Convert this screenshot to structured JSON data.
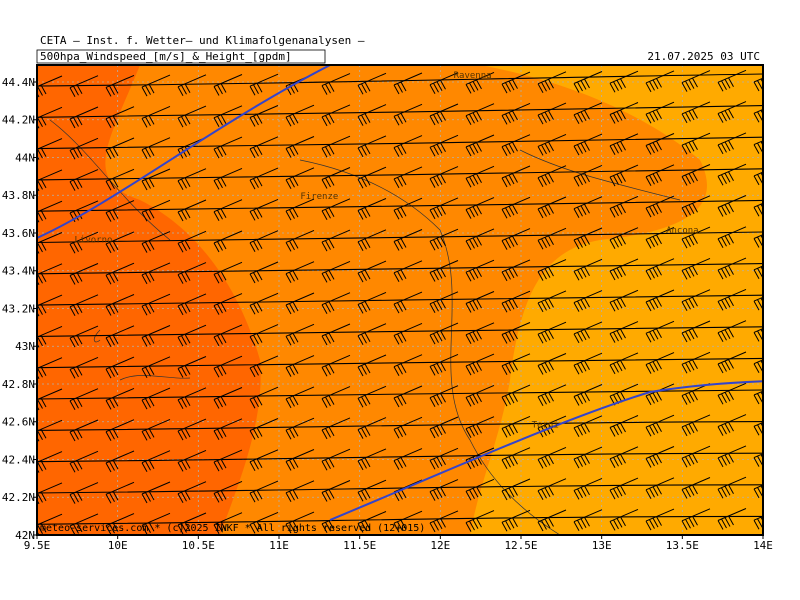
{
  "header": {
    "line1": "CETA — Inst. f. Wetter— und Klimafolgenanalysen —",
    "title": "500hpa_Windspeed_[m/s]_&_Height_[gpdm]",
    "datetime": "21.07.2025 03 UTC"
  },
  "map": {
    "lon_range": [
      9.5,
      14
    ],
    "lat_range": [
      42,
      44.49
    ],
    "lon_ticks": [
      {
        "value": 9.5,
        "label": "9.5E"
      },
      {
        "value": 10,
        "label": "10E"
      },
      {
        "value": 10.5,
        "label": "10.5E"
      },
      {
        "value": 11,
        "label": "11E"
      },
      {
        "value": 11.5,
        "label": "11.5E"
      },
      {
        "value": 12,
        "label": "12E"
      },
      {
        "value": 12.5,
        "label": "12.5E"
      },
      {
        "value": 13,
        "label": "13E"
      },
      {
        "value": 13.5,
        "label": "13.5E"
      },
      {
        "value": 14,
        "label": "14E"
      }
    ],
    "lat_ticks": [
      {
        "value": 42,
        "label": "42N"
      },
      {
        "value": 42.2,
        "label": "42.2N"
      },
      {
        "value": 42.4,
        "label": "42.4N"
      },
      {
        "value": 42.6,
        "label": "42.6N"
      },
      {
        "value": 42.8,
        "label": "42.8N"
      },
      {
        "value": 43,
        "label": "43N"
      },
      {
        "value": 43.2,
        "label": "43.2N"
      },
      {
        "value": 43.4,
        "label": "43.4N"
      },
      {
        "value": 43.6,
        "label": "43.6N"
      },
      {
        "value": 43.8,
        "label": "43.8N"
      },
      {
        "value": 44,
        "label": "44N"
      },
      {
        "value": 44.2,
        "label": "44.2N"
      },
      {
        "value": 44.4,
        "label": "44.4N"
      }
    ],
    "cities": [
      {
        "name": "Ravenna",
        "lon": 12.2,
        "lat": 44.42
      },
      {
        "name": "Firenze",
        "lon": 11.25,
        "lat": 43.78
      },
      {
        "name": "Livorno",
        "lon": 9.85,
        "lat": 43.55
      },
      {
        "name": "Ancona",
        "lon": 13.5,
        "lat": 43.6
      },
      {
        "name": "Terni",
        "lon": 12.65,
        "lat": 42.57
      }
    ]
  },
  "footer": "meteo-services.com * (c)2025 IWKF * All rights reserved (12+015)"
}
